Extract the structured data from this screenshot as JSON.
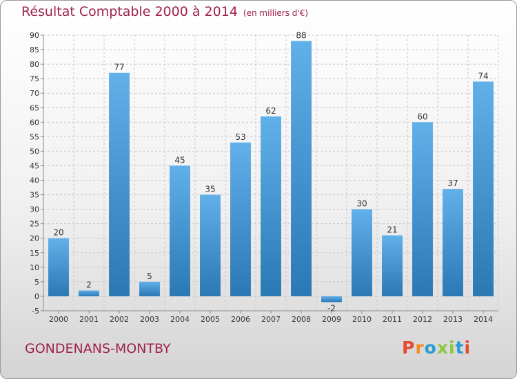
{
  "title": "Résultat Comptable 2000 à 2014",
  "subtitle": "(en milliers d'€)",
  "city": "GONDENANS-MONTBY",
  "logo": {
    "text": "Proxiti",
    "colors": [
      "#e64a2e",
      "#f28c1e",
      "#2b9ad6",
      "#8cc63e",
      "#8cc63e",
      "#2b9ad6",
      "#e64a2e"
    ]
  },
  "colors": {
    "bar_light": "#62b0ea",
    "bar_dark": "#2a78b4",
    "title": "#a0224a"
  },
  "chart_data": {
    "type": "bar",
    "categories": [
      "2000",
      "2001",
      "2002",
      "2003",
      "2004",
      "2005",
      "2006",
      "2007",
      "2008",
      "2009",
      "2010",
      "2011",
      "2012",
      "2013",
      "2014"
    ],
    "values": [
      20,
      2,
      77,
      5,
      45,
      35,
      53,
      62,
      88,
      -2,
      30,
      21,
      60,
      37,
      74
    ],
    "ylim": [
      -5,
      90
    ],
    "yticks": [
      -5,
      0,
      5,
      10,
      15,
      20,
      25,
      30,
      35,
      40,
      45,
      50,
      55,
      60,
      65,
      70,
      75,
      80,
      85,
      90
    ],
    "grid": true,
    "legend": "none"
  }
}
